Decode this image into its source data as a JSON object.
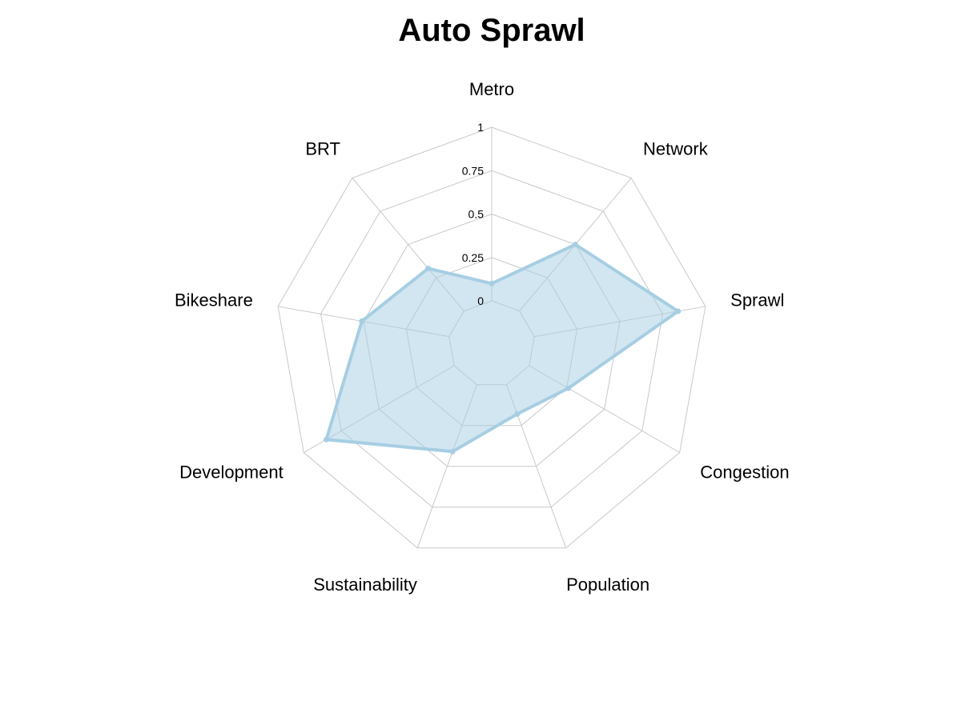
{
  "chart_data": {
    "type": "radar",
    "title": "Auto Sprawl",
    "axes": [
      "Metro",
      "Network",
      "Sprawl",
      "Congestion",
      "Population",
      "Sustainability",
      "Development",
      "Bikeshare",
      "BRT"
    ],
    "ticks": [
      "0",
      "0.25",
      "0.5",
      "0.75",
      "1"
    ],
    "range": [
      0,
      1
    ],
    "grid": true,
    "series": [
      {
        "values": [
          0.1,
          0.5,
          0.84,
          0.26,
          0.18,
          0.41,
          0.85,
          0.51,
          0.32
        ],
        "color": "#a6cee3"
      }
    ]
  }
}
